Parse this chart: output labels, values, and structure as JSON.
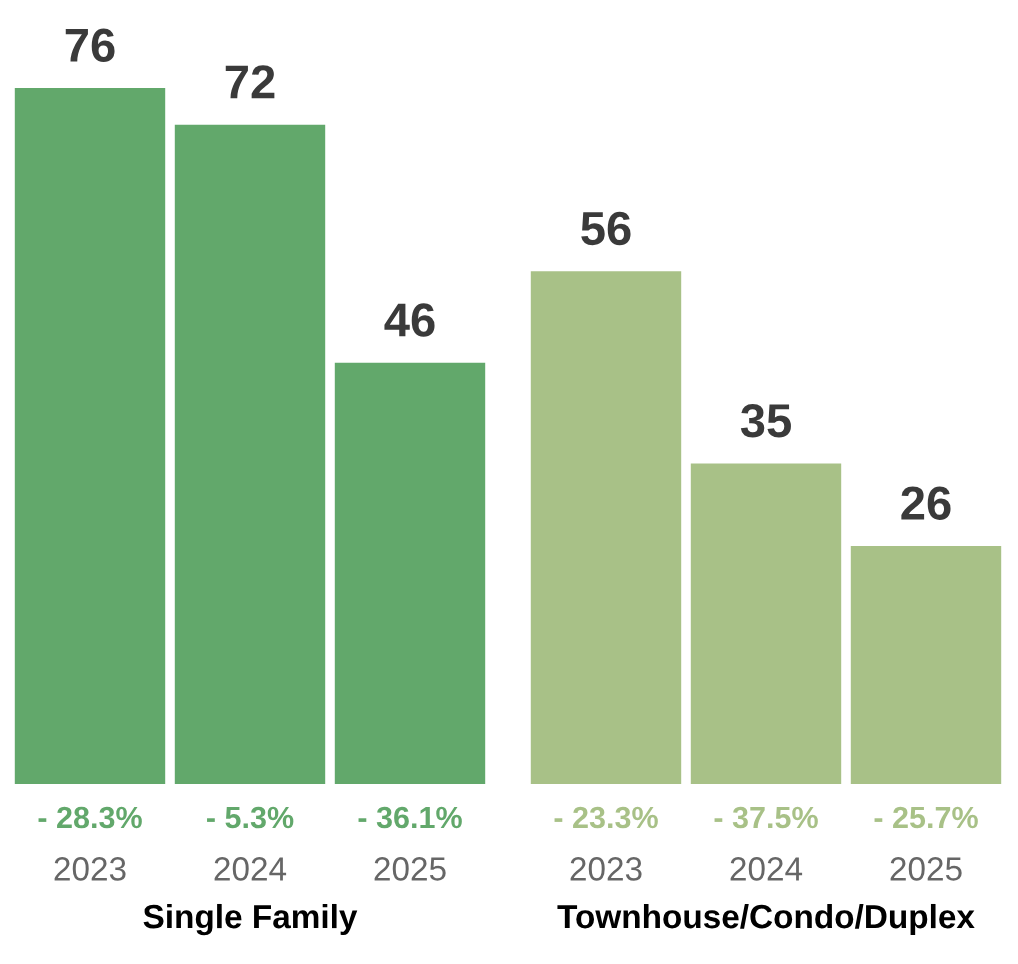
{
  "chart_data": [
    {
      "type": "bar",
      "xlabel": "Single Family",
      "categories": [
        "2023",
        "2024",
        "2025"
      ],
      "values": [
        76,
        72,
        46
      ],
      "colors": [
        "#62a86b",
        "#62a86b",
        "#62a86b"
      ],
      "data_labels": true,
      "annotations": [
        {
          "text": "- 28.3%",
          "x": "2023",
          "y": 0
        },
        {
          "text": "- 5.3%",
          "x": "2024",
          "y": 0
        },
        {
          "text": "- 36.1%",
          "x": "2025",
          "y": 0
        }
      ]
    },
    {
      "type": "bar",
      "xlabel": "Townhouse/Condo/Duplex",
      "categories": [
        "2023",
        "2024",
        "2025"
      ],
      "values": [
        56,
        35,
        26
      ],
      "colors": [
        "#a8c187",
        "#a8c187",
        "#a8c187"
      ],
      "data_labels": true,
      "annotations": [
        {
          "text": "- 23.3%",
          "x": "2023",
          "y": 0
        },
        {
          "text": "- 37.5%",
          "x": "2024",
          "y": 0
        },
        {
          "text": "- 25.7%",
          "x": "2025",
          "y": 0
        }
      ]
    }
  ]
}
